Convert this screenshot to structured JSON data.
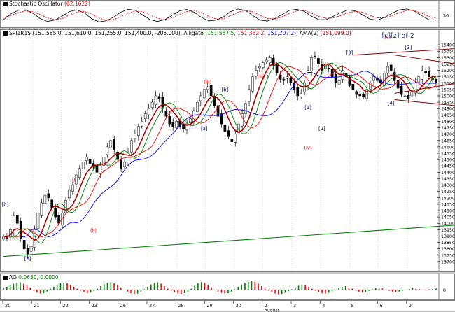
{
  "stochastic": {
    "name": "Stochastic Oscillator",
    "value": "(62.1622)",
    "levels": [
      "50"
    ],
    "k": [
      30,
      55,
      70,
      72,
      58,
      35,
      22,
      28,
      45,
      65,
      72,
      60,
      35,
      20,
      25,
      40,
      62,
      75,
      70,
      50,
      30,
      22,
      30,
      48,
      68,
      74,
      62,
      40,
      25,
      28,
      42,
      65,
      76,
      70,
      48,
      28,
      24,
      35,
      52,
      70,
      75,
      66,
      45,
      30,
      30,
      45,
      60,
      72,
      68,
      50,
      32,
      28,
      40,
      58,
      72,
      76,
      68,
      48,
      30,
      28
    ],
    "d": [
      40,
      48,
      60,
      68,
      64,
      52,
      38,
      30,
      35,
      50,
      63,
      66,
      54,
      38,
      27,
      30,
      42,
      58,
      68,
      65,
      50,
      36,
      30,
      38,
      52,
      65,
      70,
      60,
      44,
      33,
      34,
      48,
      62,
      70,
      64,
      48,
      35,
      33,
      42,
      57,
      68,
      70,
      58,
      44,
      36,
      38,
      48,
      60,
      66,
      62,
      48,
      38,
      38,
      48,
      60,
      70,
      70,
      58,
      44,
      38
    ]
  },
  "price_header": {
    "symbol": "SPI1R1S",
    "ohlc": "(151,585.0, 151,610.0, 151,255.0, 151,400.0, -205.000)",
    "alligator_label": "Alligato",
    "alligator_values": [
      "(151,557.5,",
      "151,352.2,",
      "151,207.2)"
    ],
    "ama_label": "AMA(2)",
    "ama_value": "(151,099.0)"
  },
  "ao_header": {
    "name": "AO",
    "values": "0.0630, 0.0000"
  },
  "colors": {
    "up": "#008000",
    "down": "#ff0000",
    "lips": "#008000",
    "teeth": "#ff0000",
    "jaw": "#0000ff",
    "ama": "#b00000",
    "channel": "#800000",
    "label_red": "#cc0000",
    "label_blue": "#000080",
    "trendline": "#008000"
  },
  "chart_data": {
    "type": "candlestick",
    "y_axis": {
      "min": 13650,
      "max": 15450,
      "tick_values": [
        15400,
        15350,
        15300,
        15250,
        15200,
        15150,
        15100,
        15050,
        15000,
        14950,
        14900,
        14850,
        14800,
        14750,
        14700,
        14650,
        14600,
        14550,
        14500,
        14450,
        14400,
        14350,
        14300,
        14250,
        14200,
        14150,
        14100,
        14050,
        14000,
        13950,
        13900,
        13850,
        13800,
        13750,
        13700
      ]
    },
    "x_labels": [
      "20",
      "21",
      "22",
      "23",
      "26",
      "27",
      "28",
      "29",
      "30",
      "2",
      "3",
      "4",
      "5",
      "6",
      "9"
    ],
    "x_extra": "August",
    "price_path": [
      13900,
      13880,
      13950,
      14060,
      14000,
      13880,
      13800,
      13760,
      13820,
      13950,
      14080,
      14160,
      14220,
      14200,
      14120,
      14050,
      14000,
      14080,
      14180,
      14260,
      14300,
      14380,
      14430,
      14480,
      14520,
      14470,
      14440,
      14400,
      14450,
      14520,
      14600,
      14650,
      14580,
      14500,
      14430,
      14480,
      14560,
      14650,
      14700,
      14760,
      14800,
      14860,
      14900,
      14950,
      15000,
      14980,
      14900,
      14840,
      14780,
      14760,
      14800,
      14760,
      14740,
      14780,
      14820,
      14880,
      14950,
      15000,
      15050,
      15070,
      15000,
      14920,
      14840,
      14780,
      14720,
      14680,
      14640,
      14700,
      14780,
      14860,
      14940,
      15050,
      15150,
      15200,
      15230,
      15260,
      15280,
      15300,
      15240,
      15180,
      15130,
      15120,
      15150,
      15100,
      15050,
      15000,
      15020,
      15100,
      15200,
      15300,
      15310,
      15250,
      15200,
      15230,
      15210,
      15150,
      15100,
      15120,
      15200,
      15150,
      15080,
      15050,
      15010,
      15000,
      14990,
      15050,
      15100,
      15150,
      15120,
      15100,
      15180,
      15230,
      15200,
      15120,
      15060,
      15010,
      15000,
      14980,
      15030,
      15100,
      15150,
      15200,
      15180,
      15150,
      15130,
      15100
    ],
    "annotations": [
      {
        "text": "[b]",
        "x": 0.5,
        "price": 14120,
        "color": "blue",
        "place": "above"
      },
      {
        "text": "[b]",
        "x": 7,
        "price": 13760,
        "color": "blue",
        "place": "below"
      },
      {
        "text": "(i)",
        "x": 20,
        "price": 14310,
        "color": "red",
        "place": "above"
      },
      {
        "text": "(ii)",
        "x": 26,
        "price": 13980,
        "color": "red",
        "place": "below"
      },
      {
        "text": "(iii)",
        "x": 59,
        "price": 15080,
        "color": "red",
        "place": "above"
      },
      {
        "text": "[a]",
        "x": 58,
        "price": 14780,
        "color": "blue",
        "place": "below"
      },
      {
        "text": "[b]",
        "x": 64,
        "price": 15020,
        "color": "blue",
        "place": "above"
      },
      {
        "text": "(iii).?",
        "x": 75,
        "price": 15120,
        "color": "red",
        "place": "above"
      },
      {
        "text": "[1]",
        "x": 88,
        "price": 14880,
        "color": "blue",
        "place": "above"
      },
      {
        "text": "(iv)",
        "x": 88,
        "price": 14630,
        "color": "red",
        "place": "below"
      },
      {
        "text": "[2]",
        "x": 92,
        "price": 14780,
        "color": "blue",
        "place": "below"
      },
      {
        "text": "[3]",
        "x": 100,
        "price": 15310,
        "color": "blue",
        "place": "above"
      },
      {
        "text": "(v)",
        "x": 111,
        "price": 15430,
        "color": "red",
        "place": "above"
      },
      {
        "text": "[c][z] of 2",
        "x": 114,
        "price": 15440,
        "color": "blue",
        "place": "above"
      },
      {
        "text": "[3]",
        "x": 117,
        "price": 15350,
        "color": "blue",
        "place": "above"
      },
      {
        "text": "[4]",
        "x": 112,
        "price": 14980,
        "color": "blue",
        "place": "below"
      },
      {
        "text": "(ii)",
        "x": 144,
        "price": 15250,
        "color": "red",
        "place": "above"
      },
      {
        "text": "(i)",
        "x": 137,
        "price": 14950,
        "color": "red",
        "place": "below"
      }
    ],
    "lines": [
      {
        "name": "long-trendline",
        "from": [
          0,
          13740
        ],
        "to": [
          154,
          14030
        ],
        "color": "green"
      },
      {
        "name": "channel-upper",
        "from": [
          101,
          15320
        ],
        "to": [
          154,
          15410
        ],
        "color": "channel"
      },
      {
        "name": "channel-lower",
        "from": [
          113,
          14970
        ],
        "to": [
          154,
          14860
        ],
        "color": "channel"
      },
      {
        "name": "triangle-upper",
        "from": [
          113,
          15320
        ],
        "to": [
          154,
          15160
        ],
        "color": "channel"
      },
      {
        "name": "triangle-lower",
        "from": [
          113,
          15020
        ],
        "to": [
          154,
          15200
        ],
        "color": "channel"
      }
    ],
    "ao": [
      0.1,
      0.15,
      0.22,
      0.3,
      0.35,
      0.38,
      0.3,
      0.2,
      0.1,
      -0.05,
      -0.15,
      -0.2,
      -0.18,
      -0.1,
      0.05,
      0.15,
      0.25,
      0.32,
      0.36,
      0.33,
      0.25,
      0.15,
      0.05,
      -0.05,
      -0.12,
      -0.18,
      -0.15,
      -0.08,
      0.05,
      0.18,
      0.28,
      0.35,
      0.38,
      0.32,
      0.22,
      0.1,
      0.0,
      -0.1,
      -0.18,
      -0.22,
      -0.2,
      -0.12,
      0.02,
      0.15,
      0.26,
      0.34,
      0.37,
      0.3,
      0.18,
      0.05,
      -0.06,
      -0.14,
      -0.2,
      -0.22,
      -0.18,
      -0.1,
      0.05,
      0.2,
      0.32,
      0.38,
      0.34,
      0.25,
      0.12,
      0.0,
      -0.1,
      -0.16,
      -0.2,
      -0.18,
      -0.1,
      0.02,
      0.15,
      0.26,
      0.34,
      0.4,
      0.44,
      0.4,
      0.3,
      0.18,
      0.05,
      -0.05,
      -0.14,
      -0.2,
      -0.24,
      -0.22,
      -0.16,
      -0.08,
      0.02,
      0.12,
      0.2,
      0.26,
      0.22,
      0.15,
      0.05,
      -0.05,
      -0.12,
      -0.18,
      -0.2,
      -0.16,
      -0.08,
      0.0,
      0.08,
      0.14,
      0.18,
      0.12,
      0.05,
      -0.04,
      -0.1,
      -0.14,
      -0.12,
      -0.06,
      0.02,
      0.08,
      0.1,
      0.06,
      0.0,
      -0.06,
      -0.1,
      -0.12,
      -0.1,
      -0.06,
      0.0,
      0.05,
      0.08,
      0.06,
      0.03,
      0.0,
      -0.03,
      0.02,
      0.04,
      0.06
    ]
  }
}
